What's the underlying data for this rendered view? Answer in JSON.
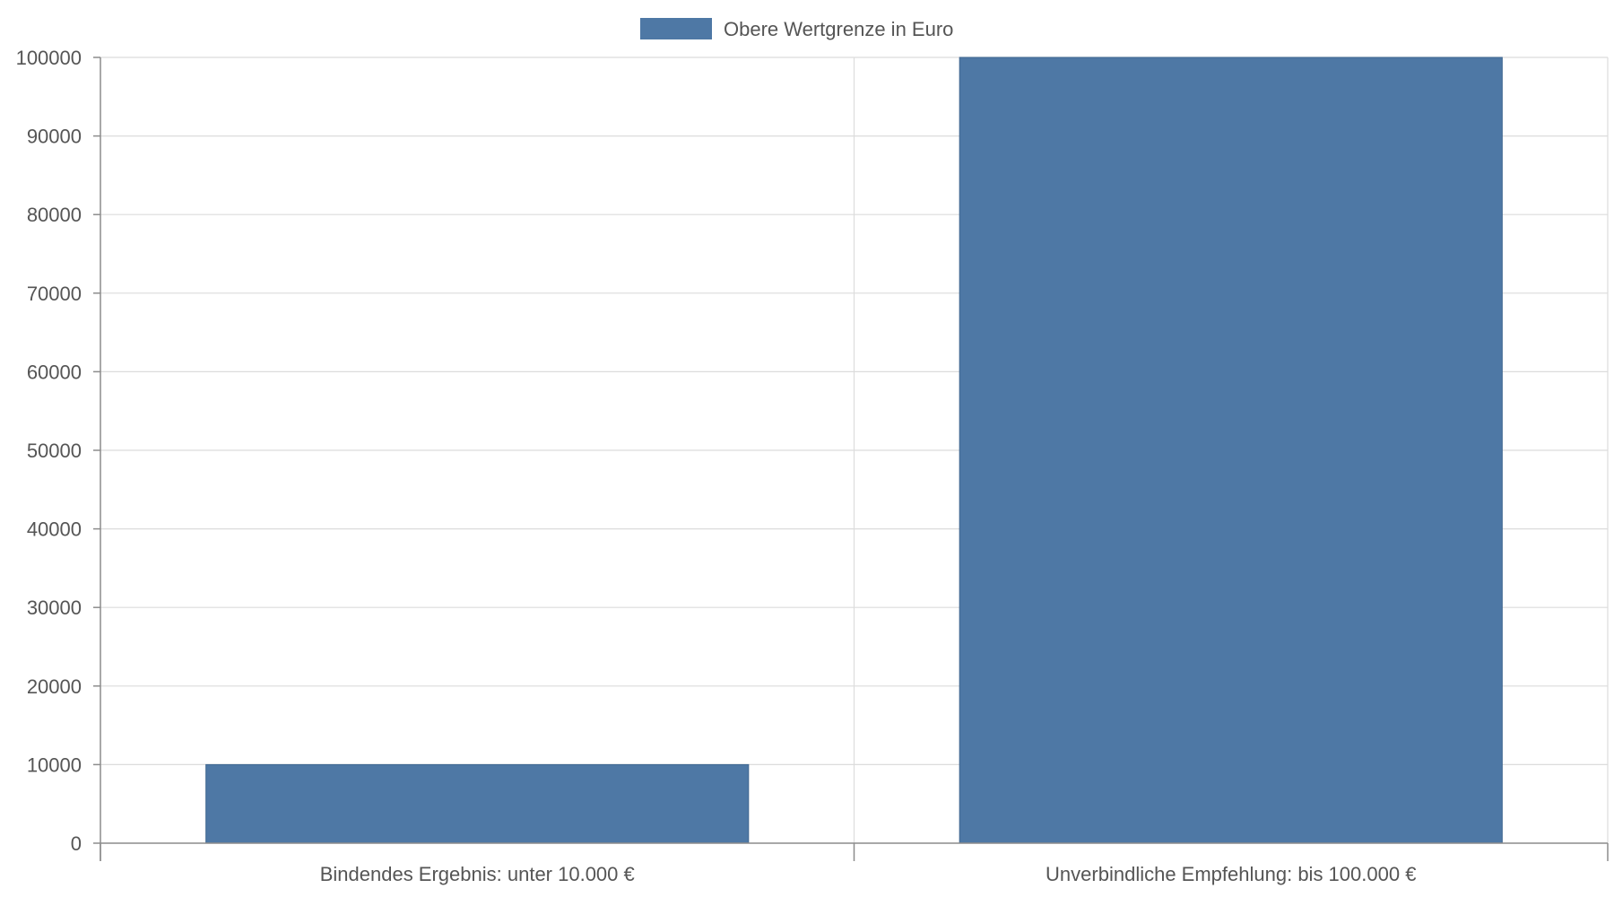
{
  "chart_data": {
    "type": "bar",
    "categories": [
      "Bindendes Ergebnis: unter 10.000 €",
      "Unverbindliche Empfehlung: bis 100.000 €"
    ],
    "series": [
      {
        "name": "Obere Wertgrenze in Euro",
        "values": [
          10000,
          100000
        ],
        "color": "#4e78a5"
      }
    ],
    "ylim": [
      0,
      100000
    ],
    "yticks": [
      0,
      10000,
      20000,
      30000,
      40000,
      50000,
      60000,
      70000,
      80000,
      90000,
      100000
    ],
    "grid": true,
    "legend": "top-center"
  }
}
